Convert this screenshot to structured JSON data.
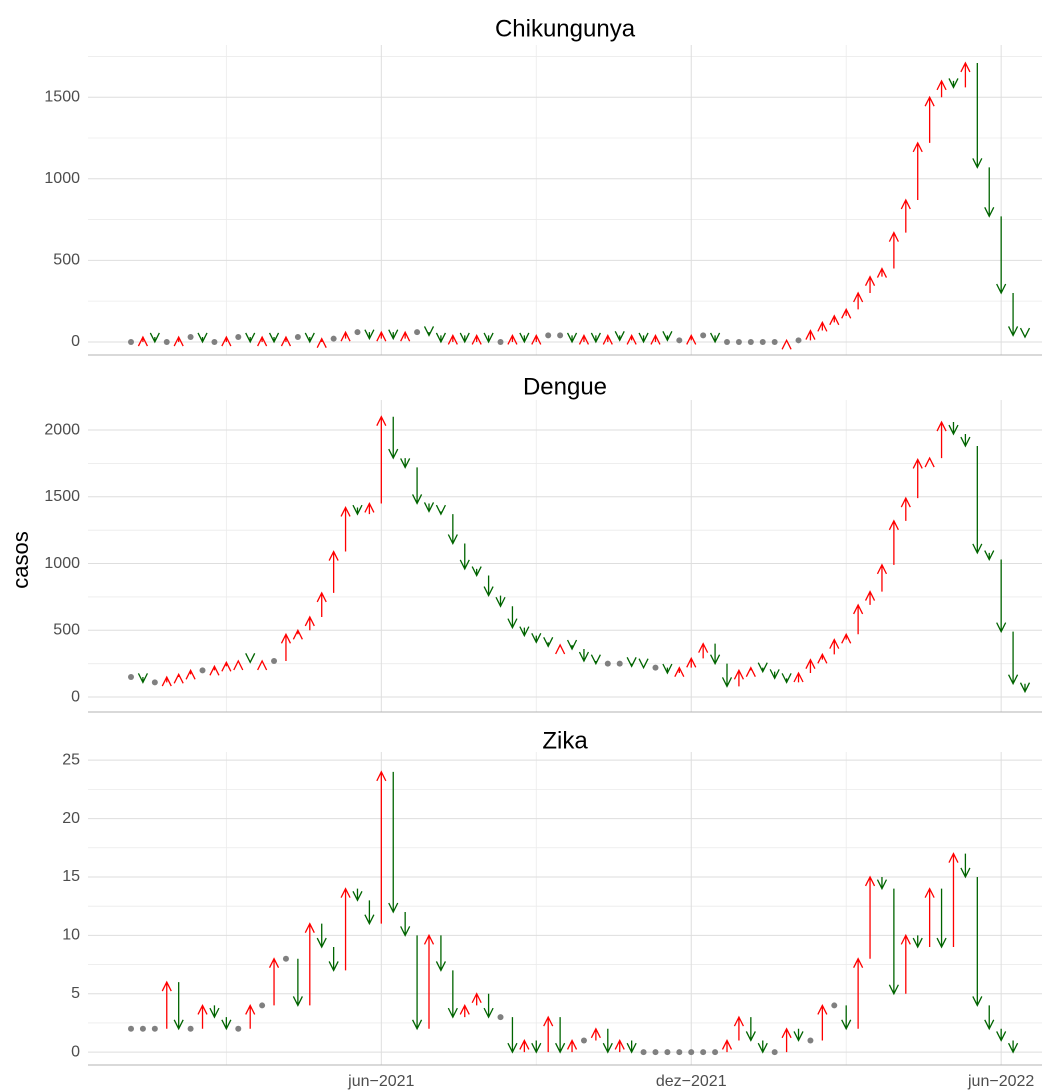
{
  "chart_data": {
    "type": "arrow",
    "y_label": "casos",
    "up_color": "#ff0000",
    "down_color": "#006400",
    "flat_color": "#808080",
    "grid": true,
    "categories": [
      null,
      null,
      null,
      null,
      null,
      null,
      null,
      null,
      null,
      null,
      null,
      null,
      null,
      null,
      null,
      null,
      null,
      null,
      null,
      null,
      null,
      "jun−2021",
      null,
      null,
      null,
      null,
      null,
      null,
      null,
      null,
      null,
      null,
      null,
      null,
      null,
      null,
      null,
      null,
      null,
      null,
      null,
      null,
      null,
      null,
      null,
      null,
      null,
      "dez−2021",
      null,
      null,
      null,
      null,
      null,
      null,
      null,
      null,
      null,
      null,
      null,
      null,
      null,
      null,
      null,
      null,
      null,
      null,
      null,
      null,
      null,
      null,
      null,
      null,
      null,
      "jun−2022",
      null,
      null
    ],
    "panels": [
      {
        "title": "Chikungunya",
        "ylim": [
          -80,
          1820
        ],
        "yticks": [
          0,
          500,
          1000,
          1500
        ],
        "values": [
          0,
          30,
          0,
          0,
          30,
          30,
          0,
          0,
          30,
          30,
          0,
          30,
          0,
          30,
          30,
          0,
          20,
          20,
          60,
          60,
          20,
          60,
          20,
          60,
          60,
          40,
          0,
          40,
          0,
          40,
          0,
          0,
          40,
          0,
          40,
          40,
          40,
          0,
          40,
          0,
          40,
          10,
          40,
          0,
          40,
          10,
          10,
          40,
          40,
          0,
          0,
          0,
          0,
          0,
          0,
          10,
          10,
          70,
          120,
          160,
          200,
          300,
          400,
          450,
          670,
          870,
          1220,
          1500,
          1600,
          1560,
          1710,
          1070,
          770,
          300,
          40,
          30
        ]
      },
      {
        "title": "Dengue",
        "ylim": [
          -112,
          2225
        ],
        "yticks": [
          0,
          500,
          1000,
          1500,
          2000
        ],
        "values": [
          150,
          110,
          110,
          150,
          170,
          200,
          200,
          230,
          260,
          270,
          260,
          270,
          270,
          470,
          500,
          600,
          780,
          1090,
          1420,
          1370,
          1450,
          2100,
          1790,
          1720,
          1450,
          1390,
          1370,
          1150,
          960,
          910,
          760,
          680,
          520,
          460,
          410,
          380,
          390,
          360,
          270,
          250,
          250,
          250,
          230,
          220,
          220,
          180,
          220,
          290,
          400,
          250,
          80,
          200,
          220,
          190,
          140,
          110,
          180,
          280,
          320,
          430,
          470,
          690,
          790,
          990,
          1320,
          1490,
          1780,
          1790,
          2060,
          1970,
          1880,
          1080,
          1030,
          490,
          100,
          40
        ]
      },
      {
        "title": "Zika",
        "ylim": [
          -1.1,
          25.7
        ],
        "yticks": [
          0,
          5,
          10,
          15,
          20,
          25
        ],
        "values": [
          2,
          2,
          2,
          6,
          2,
          2,
          4,
          3,
          2,
          2,
          4,
          4,
          8,
          8,
          4,
          11,
          9,
          7,
          14,
          13,
          11,
          24,
          12,
          10,
          2,
          10,
          7,
          3,
          4,
          5,
          3,
          3,
          0,
          1,
          0,
          3,
          0,
          1,
          1,
          2,
          0,
          1,
          0,
          0,
          0,
          0,
          0,
          0,
          0,
          0,
          1,
          3,
          1,
          0,
          0,
          2,
          1,
          1,
          4,
          4,
          2,
          8,
          15,
          14,
          5,
          10,
          9,
          14,
          9,
          17,
          15,
          4,
          2,
          1,
          0,
          null
        ]
      }
    ]
  }
}
